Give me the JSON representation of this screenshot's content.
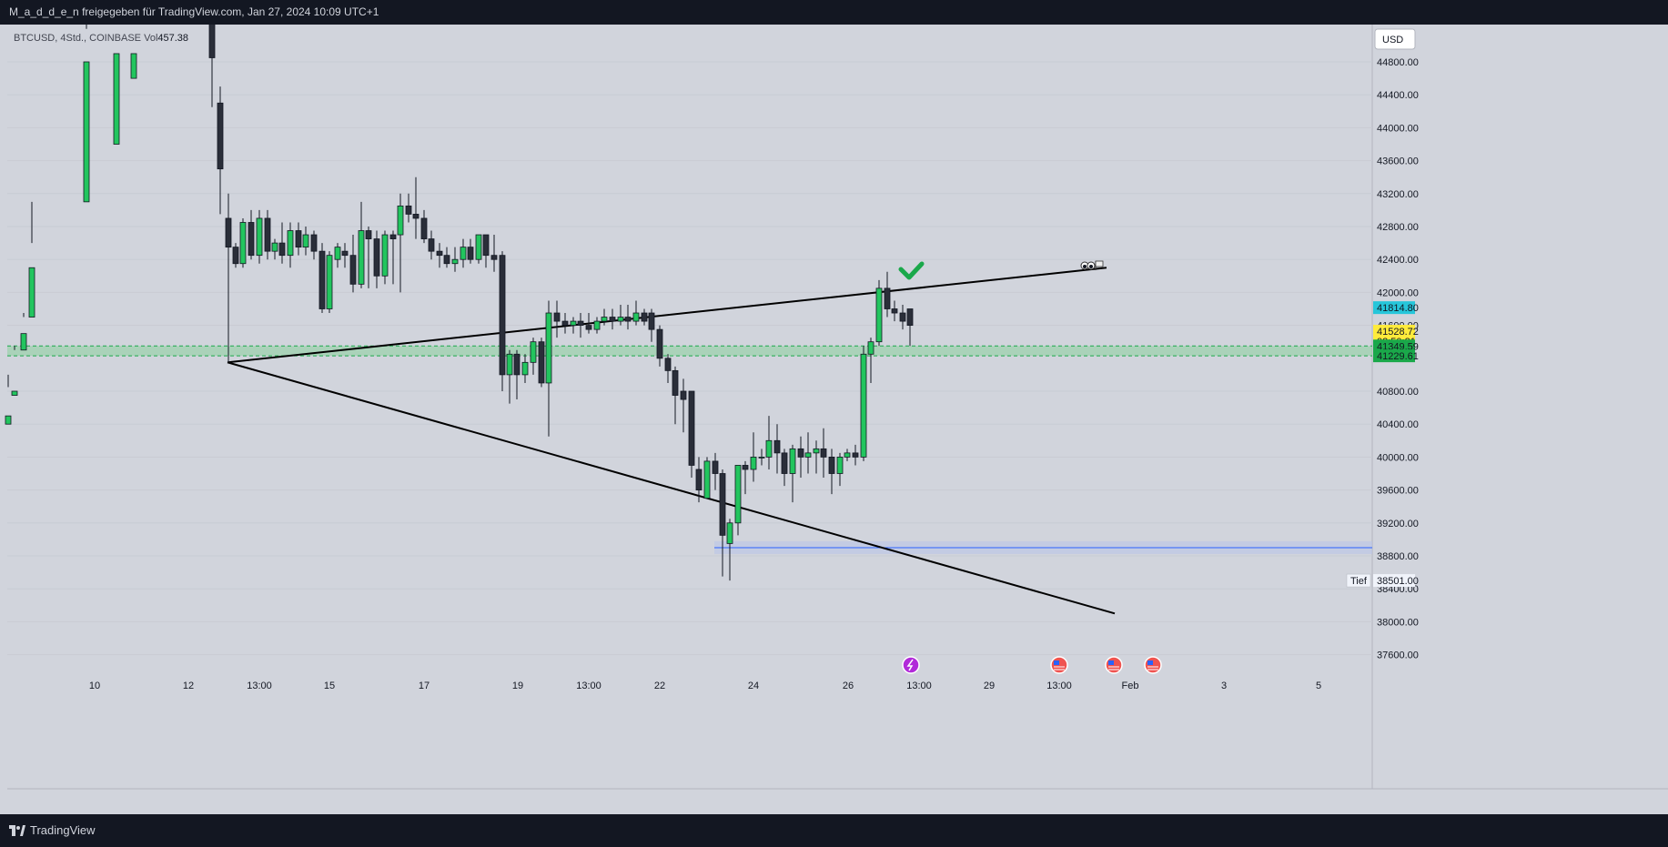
{
  "header": {
    "publisher_line": "M_a_d_d_e_n freigegeben für TradingView.com, Jan 27, 2024 10:09 UTC+1"
  },
  "footer": {
    "brand": "TradingView",
    "logo_icon": "tradingview-logo-icon"
  },
  "colors": {
    "background": "#d1d4dc",
    "up_candle": "#22c55e",
    "down_candle": "#2a2e39",
    "wick": "#131722",
    "trendline": "#000000",
    "zone": "#7bd18d",
    "horizontal_line": "#2962ff",
    "current_price_badge": "#ffeb3b",
    "last_price_badge": "#26c6da",
    "zone_badge": "#1aa84a",
    "checkmark": "#1aa84a"
  },
  "chart_data": {
    "type": "candlestick",
    "symbol": "BTCUSD",
    "interval": "4Std.",
    "exchange": "COINBASE",
    "volume_label": "Vol",
    "volume_value": "457.38",
    "currency": "USD",
    "price_axis": {
      "ticks": [
        "44800.00",
        "44400.00",
        "44000.00",
        "43600.00",
        "43200.00",
        "42800.00",
        "42400.00",
        "42000.00",
        "41600.00",
        "40800.00",
        "40400.00",
        "40000.00",
        "39600.00",
        "39200.00",
        "38800.00",
        "38400.00",
        "38000.00",
        "37600.00"
      ],
      "ylim": [
        37500,
        45300
      ]
    },
    "time_axis": {
      "ticks": [
        "10",
        "12",
        "13:00",
        "15",
        "17",
        "19",
        "13:00",
        "22",
        "24",
        "26",
        "13:00",
        "29",
        "13:00",
        "Feb",
        "3",
        "5"
      ]
    },
    "price_badges": {
      "last_price": "41814.80",
      "current_price": "41528.72",
      "countdown": "02:50:21",
      "zone_top": "41349.59",
      "zone_bottom": "41229.61",
      "low_label": "Tief",
      "low_value": "38501.00"
    },
    "zone": {
      "top": 41349.59,
      "bottom": 41229.61
    },
    "horizontal_line": {
      "price": 38900
    },
    "trendlines": [
      {
        "name": "upper",
        "points": [
          [
            250,
            41150
          ],
          [
            1216,
            42300
          ]
        ]
      },
      {
        "name": "lower",
        "points": [
          [
            250,
            41150
          ],
          [
            1225,
            38100
          ]
        ]
      }
    ],
    "candles": [
      [
        9,
        40400,
        40850,
        40500,
        41000
      ],
      [
        16,
        40750,
        41350,
        40800,
        41300
      ],
      [
        26,
        41300,
        41700,
        41500,
        41750
      ],
      [
        35,
        41700,
        42600,
        42300,
        43100
      ],
      [
        95,
        43100,
        45200,
        44800,
        45400
      ],
      [
        128,
        43800,
        45300,
        44900,
        45400
      ],
      [
        147,
        44600,
        45300,
        44900,
        45400
      ],
      [
        233,
        45300,
        45400,
        44850,
        44250
      ],
      [
        242,
        44300,
        44500,
        43500,
        42950
      ],
      [
        251,
        42900,
        43200,
        42550,
        41150
      ],
      [
        259,
        42550,
        42600,
        42350,
        42300
      ],
      [
        267,
        42350,
        42900,
        42850,
        42300
      ],
      [
        276,
        42850,
        43000,
        42450,
        42400
      ],
      [
        285,
        42450,
        43000,
        42900,
        42350
      ],
      [
        294,
        42900,
        43000,
        42500,
        42400
      ],
      [
        302,
        42500,
        42650,
        42600,
        42400
      ],
      [
        310,
        42600,
        42850,
        42450,
        42350
      ],
      [
        319,
        42450,
        42850,
        42750,
        42300
      ],
      [
        328,
        42750,
        42850,
        42550,
        42450
      ],
      [
        336,
        42550,
        42800,
        42700,
        42450
      ],
      [
        345,
        42700,
        42750,
        42500,
        42400
      ],
      [
        354,
        42500,
        42600,
        41800,
        41750
      ],
      [
        362,
        41800,
        42500,
        42450,
        41750
      ],
      [
        371,
        42400,
        42600,
        42550,
        42300
      ],
      [
        379,
        42500,
        42600,
        42450,
        42300
      ],
      [
        388,
        42450,
        42700,
        42100,
        42000
      ],
      [
        397,
        42100,
        43100,
        42750,
        42050
      ],
      [
        405,
        42750,
        42800,
        42650,
        42050
      ],
      [
        414,
        42650,
        42750,
        42200,
        42050
      ],
      [
        423,
        42200,
        42750,
        42700,
        42100
      ],
      [
        432,
        42700,
        42750,
        42650,
        42100
      ],
      [
        440,
        42700,
        43200,
        43050,
        42000
      ],
      [
        449,
        43050,
        43200,
        42950,
        42850
      ],
      [
        457,
        42950,
        43400,
        42900,
        42650
      ],
      [
        466,
        42900,
        43000,
        42650,
        42600
      ],
      [
        474,
        42650,
        42750,
        42500,
        42400
      ],
      [
        483,
        42500,
        42600,
        42450,
        42300
      ],
      [
        491,
        42450,
        42550,
        42350,
        42300
      ],
      [
        500,
        42350,
        42550,
        42400,
        42250
      ],
      [
        509,
        42400,
        42650,
        42550,
        42300
      ],
      [
        517,
        42550,
        42650,
        42400,
        42350
      ],
      [
        526,
        42400,
        42700,
        42700,
        42350
      ],
      [
        534,
        42700,
        42700,
        42450,
        42300
      ],
      [
        543,
        42450,
        42700,
        42400,
        42250
      ],
      [
        552,
        42450,
        42500,
        41000,
        40800
      ],
      [
        560,
        41000,
        41300,
        41250,
        40650
      ],
      [
        568,
        41250,
        41300,
        41000,
        40700
      ],
      [
        577,
        41000,
        41250,
        41150,
        40900
      ],
      [
        586,
        41150,
        41450,
        41400,
        41000
      ],
      [
        595,
        41400,
        41450,
        40900,
        40850
      ],
      [
        603,
        40900,
        41900,
        41750,
        40250
      ],
      [
        612,
        41750,
        41900,
        41650,
        41450
      ],
      [
        621,
        41650,
        41750,
        41600,
        41500
      ],
      [
        630,
        41600,
        41700,
        41650,
        41500
      ],
      [
        638,
        41650,
        41750,
        41600,
        41450
      ],
      [
        647,
        41600,
        41750,
        41550,
        41500
      ],
      [
        656,
        41550,
        41700,
        41650,
        41500
      ],
      [
        664,
        41650,
        41800,
        41700,
        41600
      ],
      [
        673,
        41700,
        41800,
        41650,
        41550
      ],
      [
        682,
        41650,
        41850,
        41700,
        41600
      ],
      [
        690,
        41700,
        41850,
        41650,
        41550
      ],
      [
        699,
        41650,
        41900,
        41750,
        41600
      ],
      [
        708,
        41750,
        41800,
        41650,
        41600
      ],
      [
        716,
        41750,
        41800,
        41550,
        41400
      ],
      [
        725,
        41550,
        41600,
        41200,
        41100
      ],
      [
        734,
        41200,
        41250,
        41050,
        40900
      ],
      [
        742,
        41050,
        41100,
        40750,
        40400
      ],
      [
        751,
        40800,
        40950,
        40700,
        40300
      ],
      [
        760,
        40800,
        40800,
        39900,
        39750
      ],
      [
        768,
        39850,
        40000,
        39600,
        39450
      ],
      [
        777,
        39500,
        40000,
        39950,
        39500
      ],
      [
        786,
        39950,
        40050,
        39800,
        39600
      ],
      [
        794,
        39800,
        39850,
        39050,
        38550
      ],
      [
        802,
        38950,
        39250,
        39200,
        38500
      ],
      [
        811,
        39200,
        39900,
        39900,
        39050
      ],
      [
        819,
        39900,
        39950,
        39850,
        39550
      ],
      [
        828,
        39850,
        40300,
        40000,
        39700
      ],
      [
        837,
        40000,
        40100,
        40000,
        39900
      ],
      [
        845,
        40000,
        40500,
        40200,
        39850
      ],
      [
        854,
        40200,
        40400,
        40050,
        39800
      ],
      [
        862,
        40050,
        40100,
        39800,
        39650
      ],
      [
        871,
        39800,
        40150,
        40100,
        39450
      ],
      [
        880,
        40100,
        40250,
        40000,
        39750
      ],
      [
        888,
        40000,
        40300,
        40050,
        39800
      ],
      [
        897,
        40050,
        40200,
        40100,
        39800
      ],
      [
        905,
        40100,
        40350,
        40000,
        39750
      ],
      [
        914,
        40000,
        40100,
        39800,
        39550
      ],
      [
        923,
        39800,
        40050,
        40000,
        39650
      ],
      [
        931,
        40000,
        40100,
        40050,
        39950
      ],
      [
        940,
        40050,
        40150,
        40000,
        39900
      ],
      [
        949,
        40000,
        41350,
        41250,
        39950
      ],
      [
        957,
        41250,
        41450,
        41400,
        40900
      ],
      [
        966,
        41400,
        42150,
        42050,
        41350
      ],
      [
        975,
        42050,
        42250,
        41800,
        41700
      ],
      [
        983,
        41800,
        41900,
        41750,
        41650
      ],
      [
        992,
        41750,
        41850,
        41650,
        41550
      ],
      [
        1000,
        41800,
        41800,
        41600,
        41350
      ]
    ],
    "annotations": {
      "checkmark_icon": "checkmark-icon",
      "eyes_icon": "eyes-emoji-icon",
      "flag_icon": "flag-icon",
      "event_icons": [
        "lightning-event-icon",
        "us-flag-event-icon",
        "us-flag-event-icon",
        "us-flag-event-icon"
      ]
    }
  }
}
